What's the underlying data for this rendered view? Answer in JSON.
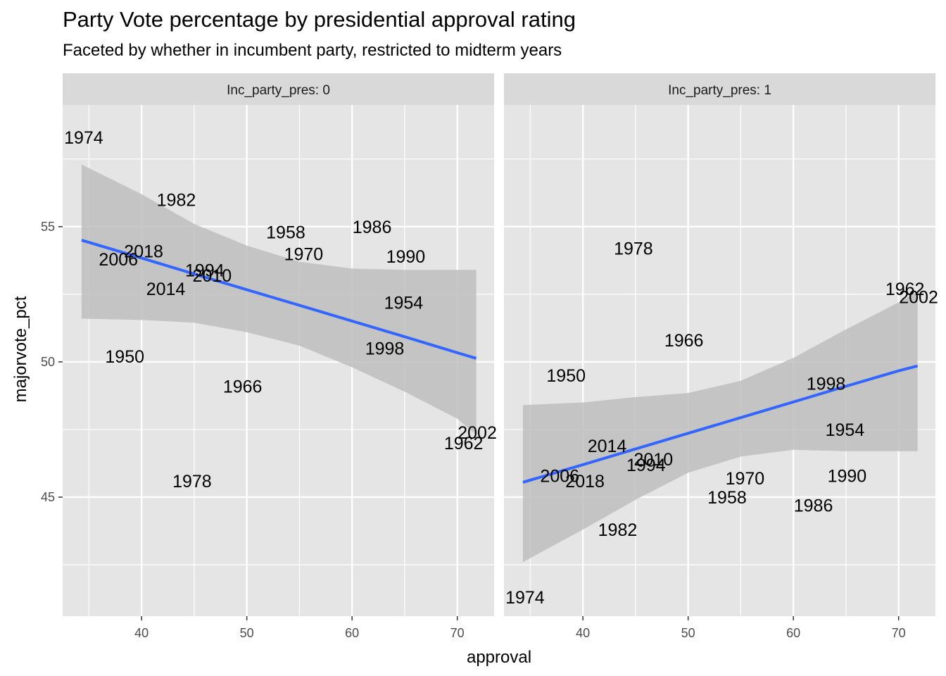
{
  "chart_data": {
    "type": "scatter",
    "title": "Party Vote percentage by presidential approval rating",
    "subtitle": "Faceted by whether in incumbent party, restricted to midterm years",
    "xlabel": "approval",
    "ylabel": "majorvote_pct",
    "xlim": [
      32.5,
      73.5
    ],
    "ylim": [
      40.6,
      59.5
    ],
    "x_ticks": [
      40,
      50,
      60,
      70
    ],
    "y_ticks": [
      45,
      50,
      55
    ],
    "grid": true,
    "colors": {
      "panel_bg": "#e5e5e5",
      "strip_bg": "#d9d9d9",
      "grid": "#ffffff",
      "fit_line": "#3366ff",
      "ribbon": "#bebebe"
    },
    "facets": [
      {
        "label": "Inc_party_pres: 0",
        "points": [
          {
            "year": "1974",
            "approval": 34.5,
            "majorvote_pct": 58.3
          },
          {
            "year": "1982",
            "approval": 43.3,
            "majorvote_pct": 56.0
          },
          {
            "year": "2018",
            "approval": 40.2,
            "majorvote_pct": 54.1
          },
          {
            "year": "2006",
            "approval": 37.8,
            "majorvote_pct": 53.8
          },
          {
            "year": "1994",
            "approval": 46.0,
            "majorvote_pct": 53.4
          },
          {
            "year": "2010",
            "approval": 46.7,
            "majorvote_pct": 53.2
          },
          {
            "year": "2014",
            "approval": 42.3,
            "majorvote_pct": 52.7
          },
          {
            "year": "1958",
            "approval": 53.7,
            "majorvote_pct": 54.8
          },
          {
            "year": "1970",
            "approval": 55.4,
            "majorvote_pct": 54.0
          },
          {
            "year": "1986",
            "approval": 61.9,
            "majorvote_pct": 55.0
          },
          {
            "year": "1990",
            "approval": 65.1,
            "majorvote_pct": 53.9
          },
          {
            "year": "1954",
            "approval": 64.9,
            "majorvote_pct": 52.2
          },
          {
            "year": "1998",
            "approval": 63.1,
            "majorvote_pct": 50.5
          },
          {
            "year": "1950",
            "approval": 38.4,
            "majorvote_pct": 50.2
          },
          {
            "year": "1966",
            "approval": 49.6,
            "majorvote_pct": 49.1
          },
          {
            "year": "2002",
            "approval": 71.9,
            "majorvote_pct": 47.4
          },
          {
            "year": "1962",
            "approval": 70.6,
            "majorvote_pct": 47.0
          },
          {
            "year": "1978",
            "approval": 44.8,
            "majorvote_pct": 45.6
          }
        ],
        "fit": {
          "x": [
            34.3,
            40,
            45,
            50,
            55,
            60,
            65,
            70,
            71.8
          ],
          "y": [
            54.5,
            53.84,
            53.25,
            52.67,
            52.09,
            51.51,
            50.93,
            50.34,
            50.13
          ],
          "lower": [
            51.6,
            51.55,
            51.45,
            51.1,
            50.6,
            49.8,
            48.9,
            47.9,
            47.3
          ],
          "upper": [
            57.3,
            56.2,
            55.1,
            54.3,
            53.7,
            53.45,
            53.4,
            53.4,
            53.4
          ]
        }
      },
      {
        "label": "Inc_party_pres: 1",
        "points": [
          {
            "year": "1978",
            "approval": 44.8,
            "majorvote_pct": 54.2
          },
          {
            "year": "1962",
            "approval": 70.6,
            "majorvote_pct": 52.7
          },
          {
            "year": "2002",
            "approval": 71.9,
            "majorvote_pct": 52.4
          },
          {
            "year": "1966",
            "approval": 49.6,
            "majorvote_pct": 50.8
          },
          {
            "year": "1950",
            "approval": 38.4,
            "majorvote_pct": 49.5
          },
          {
            "year": "1998",
            "approval": 63.1,
            "majorvote_pct": 49.2
          },
          {
            "year": "1954",
            "approval": 64.9,
            "majorvote_pct": 47.5
          },
          {
            "year": "2014",
            "approval": 42.3,
            "majorvote_pct": 46.9
          },
          {
            "year": "2010",
            "approval": 46.7,
            "majorvote_pct": 46.4
          },
          {
            "year": "1994",
            "approval": 46.0,
            "majorvote_pct": 46.2
          },
          {
            "year": "2006",
            "approval": 37.8,
            "majorvote_pct": 45.8
          },
          {
            "year": "2018",
            "approval": 40.2,
            "majorvote_pct": 45.6
          },
          {
            "year": "1970",
            "approval": 55.4,
            "majorvote_pct": 45.7
          },
          {
            "year": "1990",
            "approval": 65.1,
            "majorvote_pct": 45.8
          },
          {
            "year": "1958",
            "approval": 53.7,
            "majorvote_pct": 45.0
          },
          {
            "year": "1986",
            "approval": 61.9,
            "majorvote_pct": 44.7
          },
          {
            "year": "1982",
            "approval": 43.3,
            "majorvote_pct": 43.8
          },
          {
            "year": "1974",
            "approval": 34.5,
            "majorvote_pct": 41.3
          }
        ],
        "fit": {
          "x": [
            34.3,
            40,
            45,
            50,
            55,
            60,
            65,
            70,
            71.8
          ],
          "y": [
            45.55,
            46.2,
            46.78,
            47.36,
            47.94,
            48.52,
            49.1,
            49.67,
            49.85
          ],
          "lower": [
            42.6,
            43.8,
            44.9,
            45.9,
            46.5,
            46.75,
            46.7,
            46.7,
            46.7
          ],
          "upper": [
            48.4,
            48.5,
            48.7,
            48.85,
            49.3,
            50.15,
            51.2,
            52.2,
            52.6
          ]
        }
      }
    ]
  }
}
